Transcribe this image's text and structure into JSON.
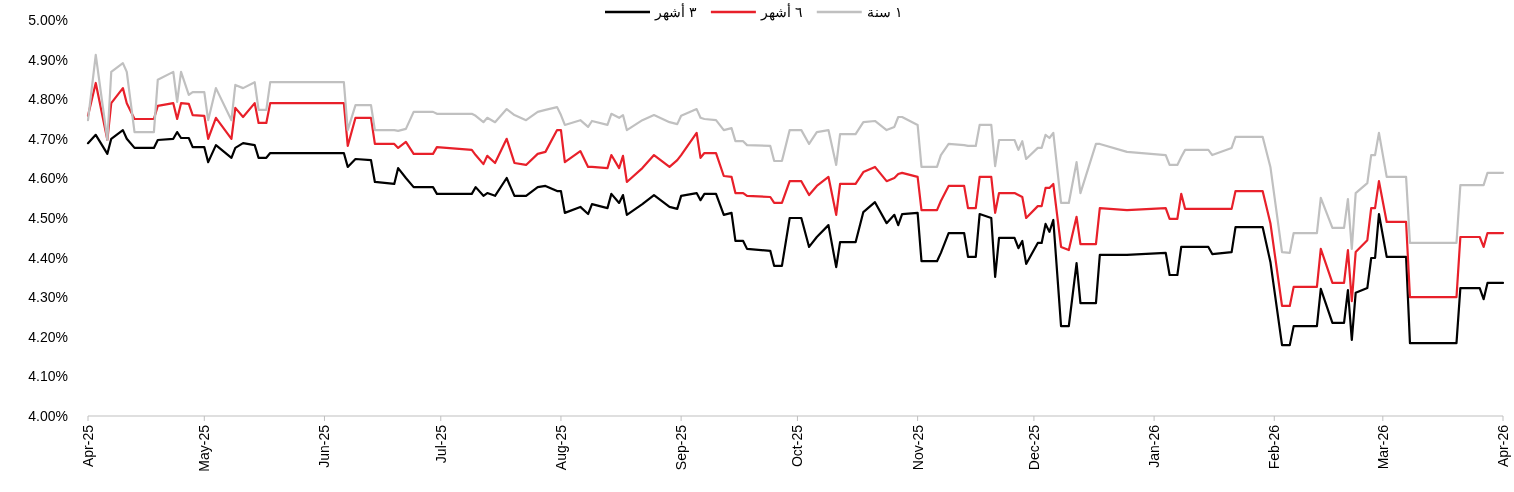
{
  "chart_data": {
    "type": "line",
    "x": [
      "2025-04-01",
      "2025-04-03",
      "2025-04-06",
      "2025-04-07",
      "2025-04-10",
      "2025-04-11",
      "2025-04-13",
      "2025-04-18",
      "2025-04-19",
      "2025-04-23",
      "2025-04-24",
      "2025-04-25",
      "2025-04-27",
      "2025-04-28",
      "2025-05-01",
      "2025-05-02",
      "2025-05-04",
      "2025-05-08",
      "2025-05-09",
      "2025-05-11",
      "2025-05-14",
      "2025-05-15",
      "2025-05-17",
      "2025-05-18",
      "2025-06-06",
      "2025-06-07",
      "2025-06-09",
      "2025-06-13",
      "2025-06-14",
      "2025-06-19",
      "2025-06-20",
      "2025-06-22",
      "2025-06-24",
      "2025-06-29",
      "2025-06-30",
      "2025-07-09",
      "2025-07-10",
      "2025-07-12",
      "2025-07-13",
      "2025-07-15",
      "2025-07-18",
      "2025-07-20",
      "2025-07-23",
      "2025-07-26",
      "2025-07-28",
      "2025-07-31",
      "2025-08-01",
      "2025-08-02",
      "2025-08-06",
      "2025-08-08",
      "2025-08-09",
      "2025-08-13",
      "2025-08-14",
      "2025-08-16",
      "2025-08-17",
      "2025-08-18",
      "2025-08-22",
      "2025-08-25",
      "2025-08-29",
      "2025-08-31",
      "2025-09-01",
      "2025-09-05",
      "2025-09-06",
      "2025-09-07",
      "2025-09-10",
      "2025-09-12",
      "2025-09-14",
      "2025-09-15",
      "2025-09-17",
      "2025-09-18",
      "2025-09-24",
      "2025-09-25",
      "2025-09-27",
      "2025-09-29",
      "2025-10-02",
      "2025-10-04",
      "2025-10-06",
      "2025-10-09",
      "2025-10-11",
      "2025-10-12",
      "2025-10-16",
      "2025-10-18",
      "2025-10-21",
      "2025-10-24",
      "2025-10-26",
      "2025-10-27",
      "2025-10-28",
      "2025-11-01",
      "2025-11-02",
      "2025-11-06",
      "2025-11-07",
      "2025-11-09",
      "2025-11-13",
      "2025-11-14",
      "2025-11-16",
      "2025-11-17",
      "2025-11-20",
      "2025-11-21",
      "2025-11-22",
      "2025-11-26",
      "2025-11-27",
      "2025-11-28",
      "2025-11-29",
      "2025-12-02",
      "2025-12-03",
      "2025-12-04",
      "2025-12-05",
      "2025-12-06",
      "2025-12-08",
      "2025-12-10",
      "2025-12-12",
      "2025-12-13",
      "2025-12-17",
      "2025-12-18",
      "2025-12-25",
      "2026-01-04",
      "2026-01-05",
      "2026-01-07",
      "2026-01-08",
      "2026-01-09",
      "2026-01-15",
      "2026-01-16",
      "2026-01-21",
      "2026-01-22",
      "2026-01-29",
      "2026-01-31",
      "2026-02-03",
      "2026-02-05",
      "2026-02-06",
      "2026-02-12",
      "2026-02-13",
      "2026-02-16",
      "2026-02-19",
      "2026-02-20",
      "2026-02-21",
      "2026-02-22",
      "2026-02-25",
      "2026-02-26",
      "2026-02-27",
      "2026-02-28",
      "2026-03-02",
      "2026-03-07",
      "2026-03-08",
      "2026-03-20",
      "2026-03-21",
      "2026-03-26",
      "2026-03-27",
      "2026-03-28",
      "2026-04-01"
    ],
    "series": [
      {
        "name": "٣ أشهر",
        "color": "#000000",
        "values": [
          4.689,
          4.71,
          4.662,
          4.7,
          4.722,
          4.7,
          4.677,
          4.677,
          4.697,
          4.7,
          4.717,
          4.702,
          4.702,
          4.679,
          4.679,
          4.641,
          4.684,
          4.652,
          4.677,
          4.689,
          4.684,
          4.652,
          4.652,
          4.664,
          4.664,
          4.629,
          4.649,
          4.646,
          4.591,
          4.586,
          4.626,
          4.601,
          4.578,
          4.578,
          4.561,
          4.561,
          4.578,
          4.556,
          4.563,
          4.556,
          4.601,
          4.556,
          4.556,
          4.578,
          4.581,
          4.568,
          4.568,
          4.513,
          4.528,
          4.51,
          4.535,
          4.525,
          4.561,
          4.538,
          4.558,
          4.508,
          4.535,
          4.558,
          4.528,
          4.523,
          4.556,
          4.563,
          4.545,
          4.561,
          4.561,
          4.508,
          4.513,
          4.442,
          4.442,
          4.422,
          4.417,
          4.379,
          4.379,
          4.5,
          4.5,
          4.427,
          4.452,
          4.482,
          4.376,
          4.439,
          4.439,
          4.515,
          4.54,
          4.487,
          4.508,
          4.482,
          4.51,
          4.513,
          4.391,
          4.391,
          4.412,
          4.462,
          4.462,
          4.402,
          4.402,
          4.51,
          4.5,
          4.351,
          4.45,
          4.45,
          4.424,
          4.442,
          4.384,
          4.437,
          4.437,
          4.485,
          4.465,
          4.495,
          4.227,
          4.227,
          4.386,
          4.285,
          4.285,
          4.407,
          4.407,
          4.412,
          4.356,
          4.356,
          4.427,
          4.427,
          4.427,
          4.409,
          4.414,
          4.477,
          4.477,
          4.389,
          4.179,
          4.179,
          4.227,
          4.227,
          4.321,
          4.235,
          4.235,
          4.318,
          4.192,
          4.311,
          4.323,
          4.399,
          4.399,
          4.51,
          4.402,
          4.402,
          4.184,
          4.184,
          4.323,
          4.323,
          4.295,
          4.336,
          4.336
        ]
      },
      {
        "name": "٦ أشهر",
        "color": "#e8202a",
        "values": [
          4.758,
          4.841,
          4.697,
          4.79,
          4.828,
          4.79,
          4.75,
          4.75,
          4.783,
          4.79,
          4.75,
          4.79,
          4.788,
          4.76,
          4.758,
          4.7,
          4.753,
          4.7,
          4.778,
          4.755,
          4.79,
          4.74,
          4.74,
          4.79,
          4.79,
          4.682,
          4.753,
          4.753,
          4.687,
          4.687,
          4.677,
          4.692,
          4.662,
          4.662,
          4.679,
          4.672,
          4.659,
          4.636,
          4.657,
          4.639,
          4.7,
          4.639,
          4.634,
          4.662,
          4.667,
          4.722,
          4.722,
          4.641,
          4.669,
          4.629,
          4.629,
          4.626,
          4.659,
          4.626,
          4.657,
          4.591,
          4.626,
          4.659,
          4.629,
          4.646,
          4.659,
          4.715,
          4.652,
          4.664,
          4.664,
          4.606,
          4.604,
          4.563,
          4.563,
          4.556,
          4.553,
          4.538,
          4.538,
          4.593,
          4.593,
          4.558,
          4.581,
          4.604,
          4.508,
          4.586,
          4.586,
          4.616,
          4.629,
          4.593,
          4.601,
          4.611,
          4.614,
          4.604,
          4.52,
          4.52,
          4.543,
          4.581,
          4.581,
          4.525,
          4.525,
          4.604,
          4.604,
          4.513,
          4.563,
          4.563,
          4.558,
          4.553,
          4.5,
          4.53,
          4.53,
          4.576,
          4.576,
          4.586,
          4.427,
          4.419,
          4.503,
          4.434,
          4.434,
          4.525,
          4.52,
          4.525,
          4.498,
          4.498,
          4.561,
          4.523,
          4.523,
          4.523,
          4.523,
          4.568,
          4.568,
          4.487,
          4.278,
          4.278,
          4.326,
          4.326,
          4.422,
          4.336,
          4.336,
          4.419,
          4.29,
          4.414,
          4.444,
          4.525,
          4.525,
          4.593,
          4.49,
          4.49,
          4.3,
          4.3,
          4.452,
          4.452,
          4.427,
          4.462,
          4.462
        ]
      },
      {
        "name": "١ سنة",
        "color": "#c0c0c0",
        "values": [
          4.747,
          4.912,
          4.697,
          4.869,
          4.891,
          4.869,
          4.717,
          4.717,
          4.849,
          4.869,
          4.793,
          4.869,
          4.811,
          4.818,
          4.818,
          4.747,
          4.828,
          4.747,
          4.836,
          4.828,
          4.843,
          4.773,
          4.773,
          4.843,
          4.843,
          4.722,
          4.785,
          4.785,
          4.722,
          4.722,
          4.72,
          4.725,
          4.768,
          4.768,
          4.763,
          4.763,
          4.758,
          4.742,
          4.753,
          4.742,
          4.775,
          4.76,
          4.747,
          4.768,
          4.773,
          4.78,
          4.76,
          4.735,
          4.747,
          4.73,
          4.745,
          4.735,
          4.763,
          4.753,
          4.76,
          4.722,
          4.747,
          4.76,
          4.742,
          4.737,
          4.758,
          4.775,
          4.753,
          4.75,
          4.747,
          4.722,
          4.727,
          4.694,
          4.694,
          4.684,
          4.682,
          4.644,
          4.644,
          4.722,
          4.722,
          4.687,
          4.717,
          4.722,
          4.634,
          4.712,
          4.712,
          4.742,
          4.745,
          4.722,
          4.73,
          4.755,
          4.755,
          4.735,
          4.629,
          4.629,
          4.659,
          4.687,
          4.684,
          4.682,
          4.682,
          4.735,
          4.735,
          4.631,
          4.697,
          4.697,
          4.672,
          4.694,
          4.649,
          4.677,
          4.677,
          4.71,
          4.702,
          4.715,
          4.538,
          4.538,
          4.641,
          4.563,
          4.687,
          4.687,
          4.667,
          4.659,
          4.634,
          4.634,
          4.654,
          4.672,
          4.672,
          4.659,
          4.677,
          4.705,
          4.705,
          4.629,
          4.414,
          4.412,
          4.462,
          4.462,
          4.551,
          4.475,
          4.475,
          4.548,
          4.422,
          4.563,
          4.588,
          4.659,
          4.659,
          4.715,
          4.604,
          4.604,
          4.437,
          4.437,
          4.583,
          4.583,
          4.583,
          4.614,
          4.614
        ]
      }
    ],
    "xlim": [
      "2025-04-01",
      "2026-04-01"
    ],
    "xticks": [
      {
        "value": "2025-04-01",
        "label": "Apr-25"
      },
      {
        "value": "2025-05-01",
        "label": "May-25"
      },
      {
        "value": "2025-06-01",
        "label": "Jun-25"
      },
      {
        "value": "2025-07-01",
        "label": "Jul-25"
      },
      {
        "value": "2025-08-01",
        "label": "Aug-25"
      },
      {
        "value": "2025-09-01",
        "label": "Sep-25"
      },
      {
        "value": "2025-10-01",
        "label": "Oct-25"
      },
      {
        "value": "2025-11-01",
        "label": "Nov-25"
      },
      {
        "value": "2025-12-01",
        "label": "Dec-25"
      },
      {
        "value": "2026-01-01",
        "label": "Jan-26"
      },
      {
        "value": "2026-02-01",
        "label": "Feb-26"
      },
      {
        "value": "2026-03-01",
        "label": "Mar-26"
      },
      {
        "value": "2026-04-01",
        "label": "Apr-26"
      }
    ],
    "ylim": [
      4.0,
      5.0
    ],
    "yticks": [
      {
        "value": 4.0,
        "label": "4.00%"
      },
      {
        "value": 4.1,
        "label": "4.10%"
      },
      {
        "value": 4.2,
        "label": "4.20%"
      },
      {
        "value": 4.3,
        "label": "4.30%"
      },
      {
        "value": 4.4,
        "label": "4.40%"
      },
      {
        "value": 4.5,
        "label": "4.50%"
      },
      {
        "value": 4.6,
        "label": "4.60%"
      },
      {
        "value": 4.7,
        "label": "4.70%"
      },
      {
        "value": 4.8,
        "label": "4.80%"
      },
      {
        "value": 4.9,
        "label": "4.90%"
      },
      {
        "value": 5.0,
        "label": "5.00%"
      }
    ],
    "legend": "top",
    "line_style": "solid"
  }
}
